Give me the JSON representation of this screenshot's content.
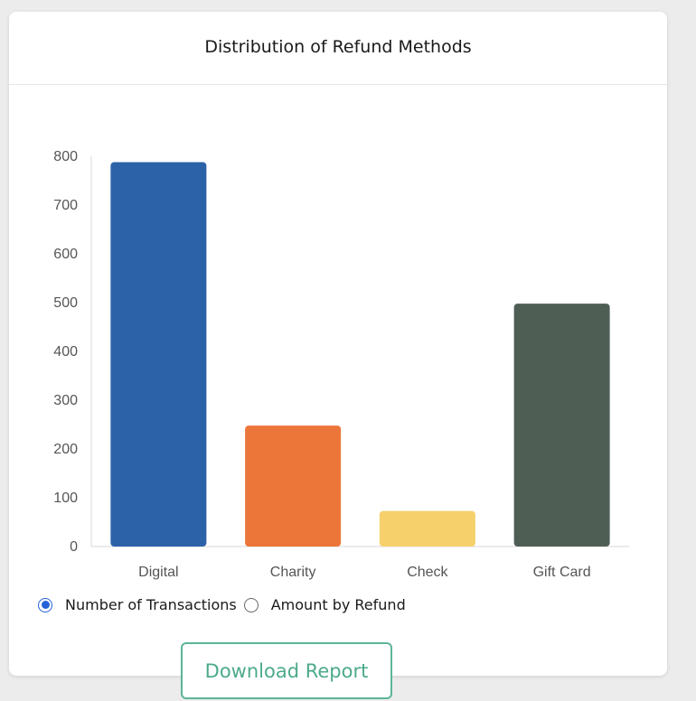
{
  "card": {
    "title": "Distribution of Refund Methods"
  },
  "chart_data": {
    "type": "bar",
    "categories": [
      "Digital",
      "Charity",
      "Check",
      "Gift Card"
    ],
    "values": [
      788,
      248,
      73,
      498
    ],
    "colors": [
      "#2c62a8",
      "#ec763a",
      "#f5d06b",
      "#4f5e55"
    ],
    "ylim": [
      0,
      800
    ],
    "yticks": [
      0,
      100,
      200,
      300,
      400,
      500,
      600,
      700,
      800
    ],
    "title": "",
    "xlabel": "",
    "ylabel": "",
    "grid": false,
    "legend": "none"
  },
  "controls": {
    "options": [
      {
        "label": "Number of Transactions",
        "selected": true
      },
      {
        "label": "Amount by Refund",
        "selected": false
      }
    ],
    "accent_color": "#2563d6"
  },
  "download_button": {
    "label": "Download Report",
    "color": "#4caa8c"
  }
}
